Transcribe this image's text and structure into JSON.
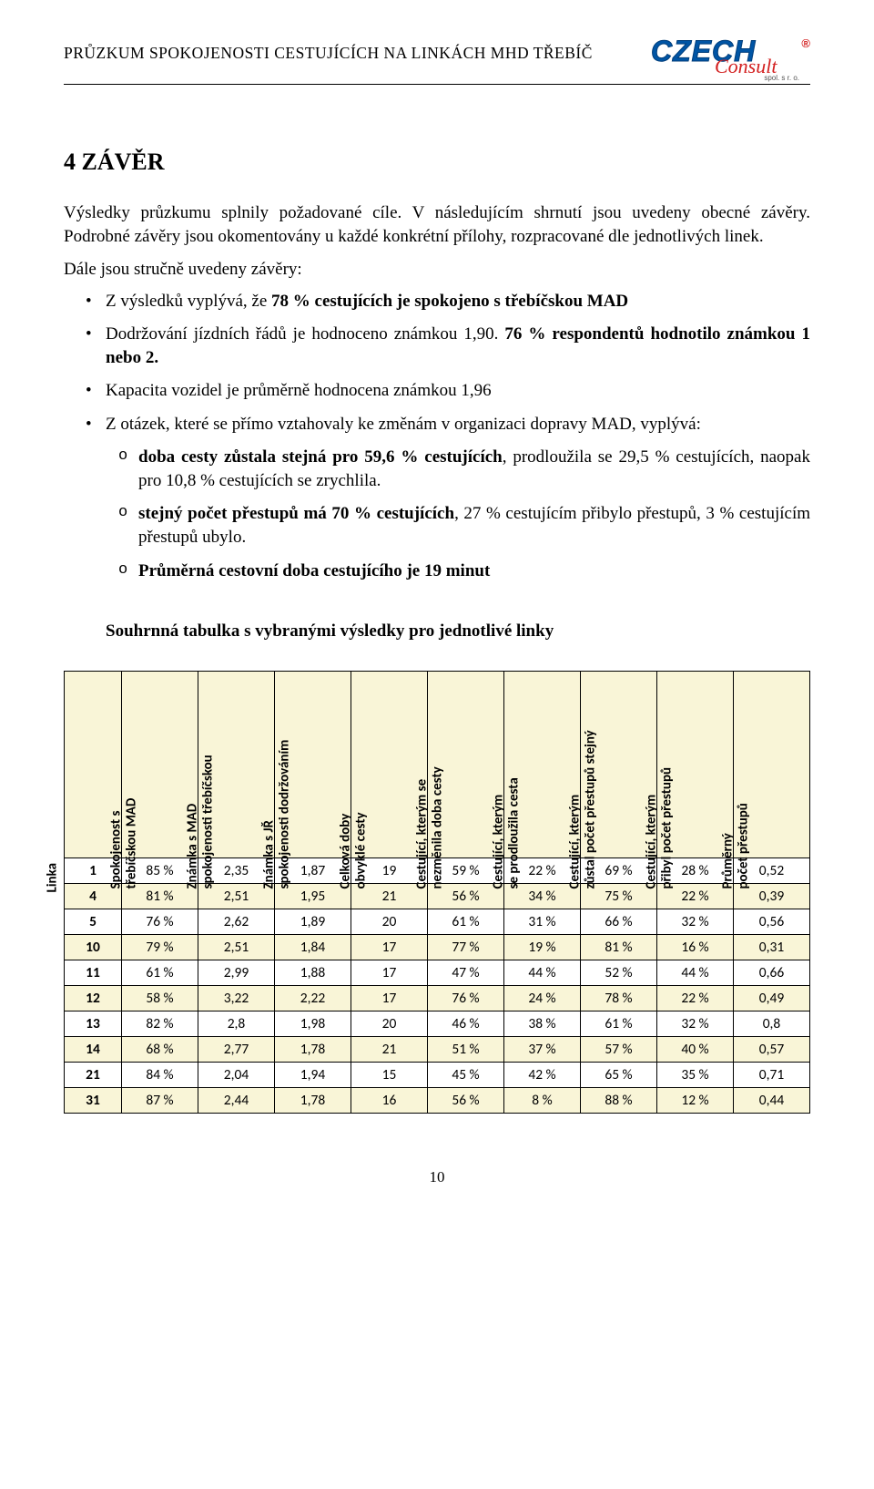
{
  "header_title": "PRŮZKUM SPOKOJENOSTI CESTUJÍCÍCH NA LINKÁCH MHD TŘEBÍČ",
  "logo": {
    "main": "CZECH",
    "sub": "Consult",
    "mark": "®",
    "tiny": "spol. s r. o."
  },
  "section_title": "4  ZÁVĚR",
  "p1": "Výsledky průzkumu splnily požadované cíle. V následujícím shrnutí jsou uvedeny obecné závěry. Podrobné závěry jsou okomentovány u každé konkrétní přílohy, rozpracované dle jednotlivých linek.",
  "p2": "Dále jsou stručně uvedeny závěry:",
  "b1_a": "Z výsledků vyplývá, že ",
  "b1_b": "78 % cestujících je spokojeno s třebíčskou MAD",
  "b2_a": "Dodržování jízdních řádů je hodnoceno známkou 1,90. ",
  "b2_b": "76 % respondentů hodnotilo známkou 1 nebo 2.",
  "b3": "Kapacita vozidel je průměrně hodnocena známkou 1,96",
  "b4": "Z otázek, které se přímo vztahovaly ke změnám v organizaci dopravy MAD, vyplývá:",
  "s1_a": "doba cesty zůstala stejná pro 59,6 % cestujících",
  "s1_b": ", prodloužila se 29,5 % cestujících, naopak pro 10,8 % cestujících se zrychlila.",
  "s2_a": "stejný počet přestupů má 70 % cestujících",
  "s2_b": ", 27 % cestujícím přibylo přestupů, 3 % cestujícím přestupů ubylo.",
  "s3": "Průměrná cestovní doba cestujícího je 19 minut",
  "table_title": "Souhrnná tabulka s vybranými výsledky pro jednotlivé linky",
  "columns": [
    "Linka",
    "Spokojenost s třebíčskou MAD",
    "Známka spokojenosti s třebíčskou MAD",
    "Známka spokojenosti s dodržováním JŘ",
    "Celková doby obvyklé cesty",
    "Cestující, kterým se nezměnila doba cesty",
    "Cestující, kterým se prodloužila cesta",
    "Cestující, kterým zůstal počet přestupů stejný",
    "Cestující, kterým přibyl počet přestupů",
    "Průměrný počet přestupů"
  ],
  "rows": [
    [
      "1",
      "85 %",
      "2,35",
      "1,87",
      "19",
      "59 %",
      "22 %",
      "69 %",
      "28 %",
      "0,52"
    ],
    [
      "4",
      "81 %",
      "2,51",
      "1,95",
      "21",
      "56 %",
      "34 %",
      "75 %",
      "22 %",
      "0,39"
    ],
    [
      "5",
      "76 %",
      "2,62",
      "1,89",
      "20",
      "61 %",
      "31 %",
      "66 %",
      "32 %",
      "0,56"
    ],
    [
      "10",
      "79 %",
      "2,51",
      "1,84",
      "17",
      "77 %",
      "19 %",
      "81 %",
      "16 %",
      "0,31"
    ],
    [
      "11",
      "61 %",
      "2,99",
      "1,88",
      "17",
      "47 %",
      "44 %",
      "52 %",
      "44 %",
      "0,66"
    ],
    [
      "12",
      "58 %",
      "3,22",
      "2,22",
      "17",
      "76 %",
      "24 %",
      "78 %",
      "22 %",
      "0,49"
    ],
    [
      "13",
      "82 %",
      "2,8",
      "1,98",
      "20",
      "46 %",
      "38 %",
      "61 %",
      "32 %",
      "0,8"
    ],
    [
      "14",
      "68 %",
      "2,77",
      "1,78",
      "21",
      "51 %",
      "37 %",
      "57 %",
      "40 %",
      "0,57"
    ],
    [
      "21",
      "84 %",
      "2,04",
      "1,94",
      "15",
      "45 %",
      "42 %",
      "65 %",
      "35 %",
      "0,71"
    ],
    [
      "31",
      "87 %",
      "2,44",
      "1,78",
      "16",
      "56 %",
      "8 %",
      "88 %",
      "12 %",
      "0,44"
    ]
  ],
  "table_style": {
    "header_bg": "#f9f5d7",
    "band_bg": "#f9f5d7",
    "border": "#000000",
    "font": "Calibri"
  },
  "page_number": "10"
}
